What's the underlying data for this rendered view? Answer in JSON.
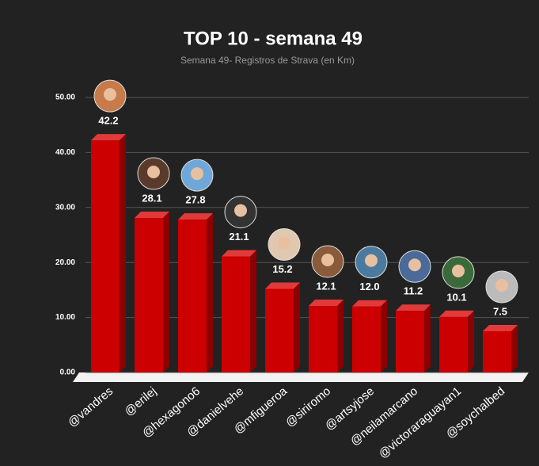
{
  "chart_data": {
    "type": "bar3d",
    "title": "TOP 10 - semana 49",
    "subtitle": "Semana 49- Registros de Strava (en Km)",
    "categories": [
      "@vandres",
      "@erilej",
      "@hexagono6",
      "@danielvehe",
      "@mfigueroa",
      "@siriromo",
      "@artsyjose",
      "@neilamarcano",
      "@victoraraguayan1",
      "@soychalbed"
    ],
    "values": [
      42.2,
      28.1,
      27.8,
      21.1,
      15.2,
      12.1,
      12.0,
      11.2,
      10.1,
      7.5
    ],
    "value_labels": [
      "42.2",
      "28.1",
      "27.8",
      "21.1",
      "15.2",
      "12.1",
      "12.0",
      "11.2",
      "10.1",
      "7.5"
    ],
    "color": "#cc0000",
    "ylim": [
      0,
      50
    ],
    "yticks": [
      {
        "value": 0,
        "label": "0.00"
      },
      {
        "value": 10,
        "label": "10.00"
      },
      {
        "value": 20,
        "label": "20.00"
      },
      {
        "value": 30,
        "label": "30.00"
      },
      {
        "value": 40,
        "label": "40.00"
      },
      {
        "value": 50,
        "label": "50.00"
      }
    ],
    "grid": true
  }
}
